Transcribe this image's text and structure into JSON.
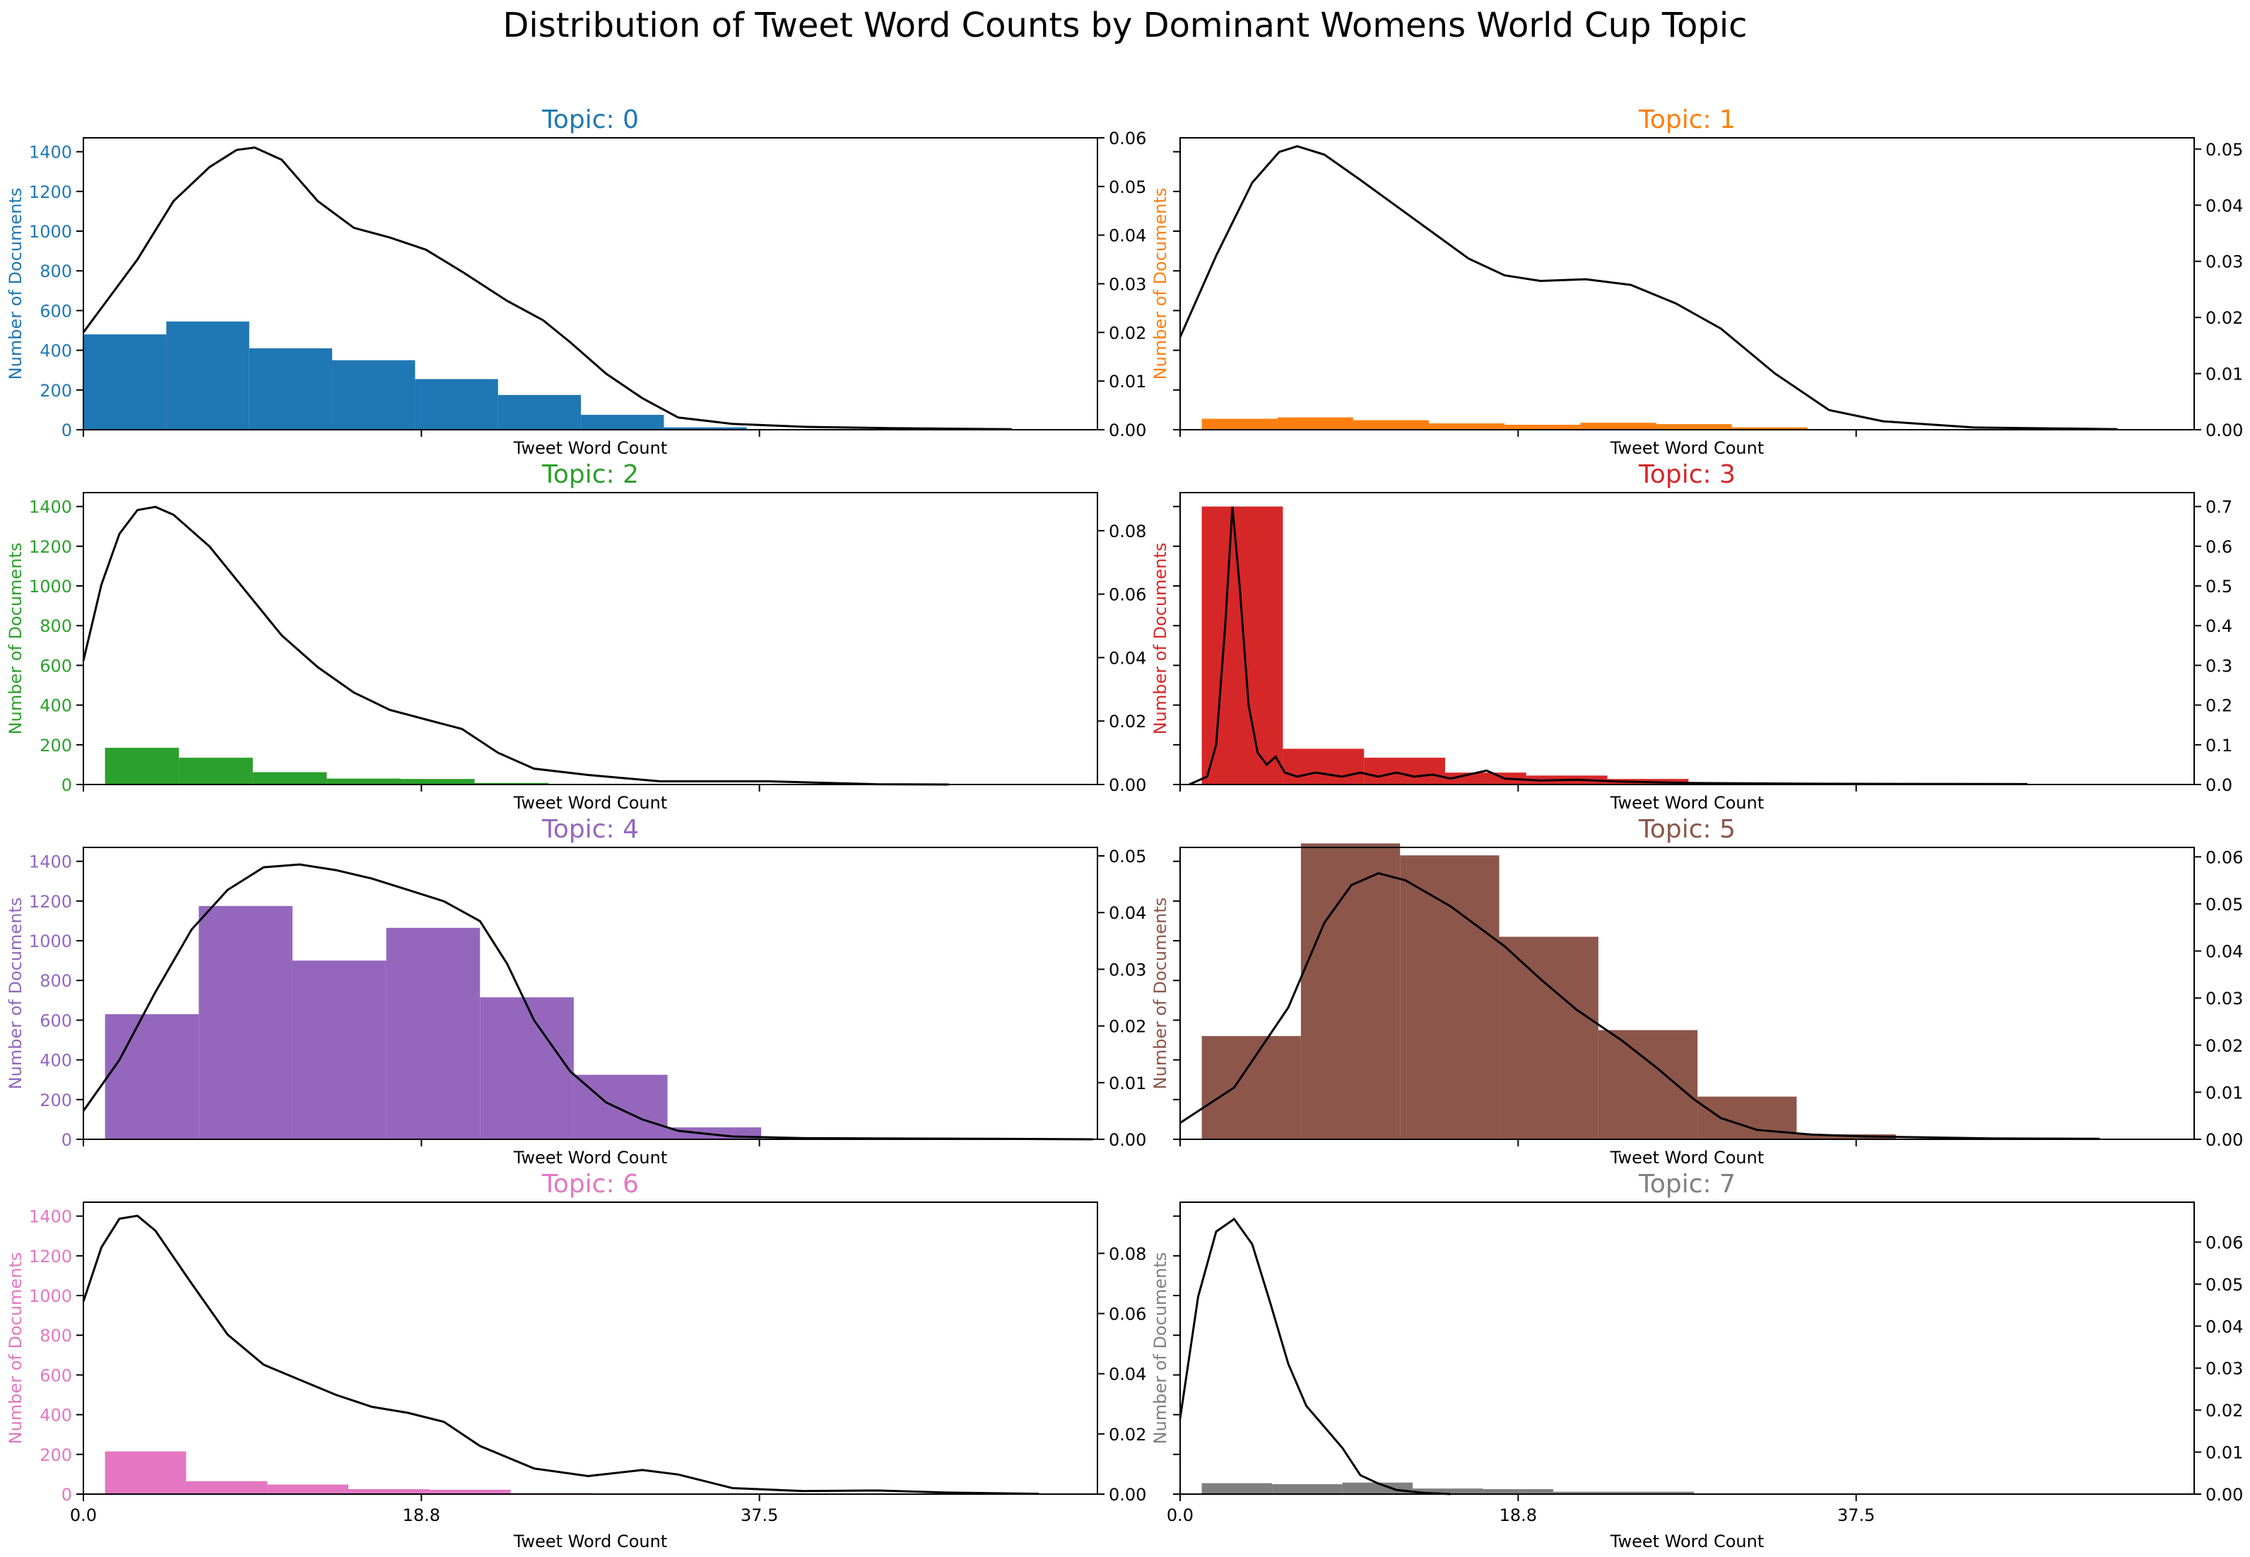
{
  "figure": {
    "title": "Distribution of Tweet Word Counts by Dominant  Womens World Cup Topic"
  },
  "shared": {
    "xlabel": "Tweet Word Count",
    "ylabel": "Number of Documents",
    "xlim": [
      0,
      56.25
    ],
    "xticks": [
      "0.0",
      "18.8",
      "37.5"
    ],
    "xtick_values": [
      0,
      18.75,
      37.5
    ],
    "left_ylim": [
      0,
      1470
    ],
    "left_yticks": [
      0,
      200,
      400,
      600,
      800,
      1000,
      1200,
      1400
    ]
  },
  "chart_data": [
    {
      "type": "bar",
      "title": "Topic: 0",
      "color": "#1f77b4",
      "bins": [
        [
          0.0,
          4.6,
          480
        ],
        [
          4.6,
          9.2,
          545
        ],
        [
          9.2,
          13.8,
          410
        ],
        [
          13.8,
          18.4,
          350
        ],
        [
          18.4,
          23.0,
          255
        ],
        [
          23.0,
          27.6,
          175
        ],
        [
          27.6,
          32.2,
          75
        ],
        [
          32.2,
          36.8,
          12
        ]
      ],
      "kde": {
        "ylim": [
          0,
          0.06
        ],
        "yticks": [
          "0.00",
          "0.01",
          "0.02",
          "0.03",
          "0.04",
          "0.05",
          "0.06"
        ],
        "ytick_values": [
          0,
          0.01,
          0.02,
          0.03,
          0.04,
          0.05,
          0.06
        ],
        "points": [
          [
            0,
            0.02
          ],
          [
            3,
            0.035
          ],
          [
            5,
            0.047
          ],
          [
            7,
            0.054
          ],
          [
            8.5,
            0.0575
          ],
          [
            9.5,
            0.058
          ],
          [
            11,
            0.0555
          ],
          [
            13,
            0.047
          ],
          [
            15,
            0.0415
          ],
          [
            17,
            0.0395
          ],
          [
            19,
            0.037
          ],
          [
            21,
            0.0325
          ],
          [
            23.5,
            0.0265
          ],
          [
            25.5,
            0.0225
          ],
          [
            27,
            0.018
          ],
          [
            29,
            0.0115
          ],
          [
            31,
            0.0065
          ],
          [
            33,
            0.0025
          ],
          [
            36,
            0.0012
          ],
          [
            40,
            0.0006
          ],
          [
            45,
            0.0003
          ],
          [
            51.5,
            0.0001
          ]
        ]
      }
    },
    {
      "type": "bar",
      "title": "Topic: 1",
      "color": "#ff7f0e",
      "bins": [
        [
          1.2,
          5.4,
          55
        ],
        [
          5.4,
          9.6,
          62
        ],
        [
          9.6,
          13.8,
          48
        ],
        [
          13.8,
          18.0,
          32
        ],
        [
          18.0,
          22.2,
          25
        ],
        [
          22.2,
          26.4,
          35
        ],
        [
          26.4,
          30.6,
          28
        ],
        [
          30.6,
          34.8,
          12
        ]
      ],
      "kde": {
        "ylim": [
          0,
          0.052
        ],
        "yticks": [
          "0.00",
          "0.01",
          "0.02",
          "0.03",
          "0.04",
          "0.05"
        ],
        "ytick_values": [
          0,
          0.01,
          0.02,
          0.03,
          0.04,
          0.05
        ],
        "points": [
          [
            0,
            0.0165
          ],
          [
            2,
            0.031
          ],
          [
            4,
            0.044
          ],
          [
            5.5,
            0.0495
          ],
          [
            6.5,
            0.0505
          ],
          [
            8,
            0.049
          ],
          [
            10,
            0.0445
          ],
          [
            13,
            0.0375
          ],
          [
            16,
            0.0305
          ],
          [
            18,
            0.0275
          ],
          [
            20,
            0.0265
          ],
          [
            22.5,
            0.0268
          ],
          [
            25,
            0.0258
          ],
          [
            27.5,
            0.0225
          ],
          [
            30,
            0.018
          ],
          [
            33,
            0.01
          ],
          [
            36,
            0.0035
          ],
          [
            39,
            0.0015
          ],
          [
            44,
            0.0004
          ],
          [
            52,
            0.0001
          ]
        ]
      }
    },
    {
      "type": "bar",
      "title": "Topic: 2",
      "color": "#2ca02c",
      "bins": [
        [
          1.2,
          5.3,
          185
        ],
        [
          5.3,
          9.4,
          135
        ],
        [
          9.4,
          13.5,
          62
        ],
        [
          13.5,
          17.6,
          30
        ],
        [
          17.6,
          21.7,
          28
        ],
        [
          21.7,
          25.8,
          8
        ],
        [
          25.8,
          29.9,
          3
        ]
      ],
      "kde": {
        "ylim": [
          0,
          0.092
        ],
        "yticks": [
          "0.00",
          "0.02",
          "0.04",
          "0.06",
          "0.08"
        ],
        "ytick_values": [
          0,
          0.02,
          0.04,
          0.06,
          0.08
        ],
        "points": [
          [
            0,
            0.039
          ],
          [
            1,
            0.063
          ],
          [
            2,
            0.079
          ],
          [
            3,
            0.0865
          ],
          [
            4,
            0.0875
          ],
          [
            5,
            0.085
          ],
          [
            7,
            0.075
          ],
          [
            9,
            0.061
          ],
          [
            11,
            0.047
          ],
          [
            13,
            0.037
          ],
          [
            15,
            0.029
          ],
          [
            17,
            0.0235
          ],
          [
            19,
            0.0205
          ],
          [
            21,
            0.0175
          ],
          [
            23,
            0.01
          ],
          [
            25,
            0.005
          ],
          [
            28,
            0.003
          ],
          [
            32,
            0.001
          ],
          [
            38,
            0.001
          ],
          [
            44,
            0.0001
          ],
          [
            48,
            0
          ]
        ]
      }
    },
    {
      "type": "bar",
      "title": "Topic: 3",
      "color": "#d62728",
      "bins": [
        [
          1.2,
          5.7,
          1400
        ],
        [
          5.7,
          10.2,
          180
        ],
        [
          10.2,
          14.7,
          135
        ],
        [
          14.7,
          19.2,
          60
        ],
        [
          19.2,
          23.7,
          45
        ],
        [
          23.7,
          28.2,
          28
        ],
        [
          28.2,
          32.7,
          5
        ]
      ],
      "kde": {
        "ylim": [
          0,
          0.735
        ],
        "yticks": [
          "0.0",
          "0.1",
          "0.2",
          "0.3",
          "0.4",
          "0.5",
          "0.6",
          "0.7"
        ],
        "ytick_values": [
          0,
          0.1,
          0.2,
          0.3,
          0.4,
          0.5,
          0.6,
          0.7
        ],
        "points": [
          [
            0.5,
            0
          ],
          [
            1.5,
            0.02
          ],
          [
            2,
            0.1
          ],
          [
            2.5,
            0.4
          ],
          [
            2.9,
            0.7
          ],
          [
            3.3,
            0.5
          ],
          [
            3.8,
            0.2
          ],
          [
            4.3,
            0.08
          ],
          [
            4.8,
            0.05
          ],
          [
            5.3,
            0.07
          ],
          [
            5.8,
            0.03
          ],
          [
            6.5,
            0.02
          ],
          [
            7.5,
            0.03
          ],
          [
            9,
            0.02
          ],
          [
            10,
            0.03
          ],
          [
            11,
            0.02
          ],
          [
            12,
            0.03
          ],
          [
            13,
            0.02
          ],
          [
            14,
            0.025
          ],
          [
            15,
            0.015
          ],
          [
            16,
            0.025
          ],
          [
            17,
            0.035
          ],
          [
            18,
            0.015
          ],
          [
            20,
            0.01
          ],
          [
            22,
            0.012
          ],
          [
            24,
            0.008
          ],
          [
            28,
            0.004
          ],
          [
            35,
            0.002
          ],
          [
            47,
            0.001
          ]
        ]
      }
    },
    {
      "type": "bar",
      "title": "Topic: 4",
      "color": "#9467bd",
      "bins": [
        [
          1.2,
          6.4,
          630
        ],
        [
          6.4,
          11.6,
          1175
        ],
        [
          11.6,
          16.8,
          900
        ],
        [
          16.8,
          22.0,
          1065
        ],
        [
          22.0,
          27.2,
          715
        ],
        [
          27.2,
          32.4,
          325
        ],
        [
          32.4,
          37.6,
          60
        ]
      ],
      "kde": {
        "ylim": [
          0,
          0.0515
        ],
        "yticks": [
          "0.00",
          "0.01",
          "0.02",
          "0.03",
          "0.04",
          "0.05"
        ],
        "ytick_values": [
          0,
          0.01,
          0.02,
          0.03,
          0.04,
          0.05
        ],
        "points": [
          [
            0,
            0.005
          ],
          [
            2,
            0.014
          ],
          [
            4,
            0.026
          ],
          [
            6,
            0.037
          ],
          [
            8,
            0.044
          ],
          [
            10,
            0.048
          ],
          [
            12,
            0.0485
          ],
          [
            14,
            0.0475
          ],
          [
            16,
            0.046
          ],
          [
            18,
            0.044
          ],
          [
            20,
            0.042
          ],
          [
            22,
            0.0385
          ],
          [
            23.5,
            0.031
          ],
          [
            25,
            0.021
          ],
          [
            27,
            0.012
          ],
          [
            29,
            0.0065
          ],
          [
            31,
            0.0035
          ],
          [
            33,
            0.0015
          ],
          [
            36,
            0.0005
          ],
          [
            40,
            0.0002
          ],
          [
            50,
            0.0001
          ],
          [
            56,
            0
          ]
        ]
      }
    },
    {
      "type": "bar",
      "title": "Topic: 5",
      "color": "#8c564b",
      "bins": [
        [
          1.2,
          6.7,
          520
        ],
        [
          6.7,
          12.2,
          1490
        ],
        [
          12.2,
          17.7,
          1430
        ],
        [
          17.7,
          23.2,
          1020
        ],
        [
          23.2,
          28.7,
          550
        ],
        [
          28.7,
          34.2,
          215
        ],
        [
          34.2,
          39.7,
          25
        ]
      ],
      "kde": {
        "ylim": [
          0,
          0.062
        ],
        "yticks": [
          "0.00",
          "0.01",
          "0.02",
          "0.03",
          "0.04",
          "0.05",
          "0.06"
        ],
        "ytick_values": [
          0,
          0.01,
          0.02,
          0.03,
          0.04,
          0.05,
          0.06
        ],
        "points": [
          [
            0,
            0.0035
          ],
          [
            3,
            0.011
          ],
          [
            6,
            0.028
          ],
          [
            8,
            0.046
          ],
          [
            9.5,
            0.054
          ],
          [
            11,
            0.0565
          ],
          [
            12.5,
            0.055
          ],
          [
            15,
            0.0495
          ],
          [
            18,
            0.041
          ],
          [
            20,
            0.034
          ],
          [
            22,
            0.0275
          ],
          [
            24.5,
            0.021
          ],
          [
            26.5,
            0.015
          ],
          [
            28.5,
            0.0085
          ],
          [
            30,
            0.0045
          ],
          [
            32,
            0.002
          ],
          [
            35,
            0.001
          ],
          [
            38,
            0.0006
          ],
          [
            45,
            0.0002
          ],
          [
            51,
            0.0001
          ]
        ]
      }
    },
    {
      "type": "bar",
      "title": "Topic: 6",
      "color": "#e377c2",
      "bins": [
        [
          1.2,
          5.7,
          215
        ],
        [
          5.7,
          10.2,
          65
        ],
        [
          10.2,
          14.7,
          48
        ],
        [
          14.7,
          19.2,
          25
        ],
        [
          19.2,
          23.7,
          22
        ],
        [
          23.7,
          28.2,
          5
        ],
        [
          28.2,
          32.7,
          3
        ],
        [
          32.7,
          37.2,
          2
        ]
      ],
      "kde": {
        "ylim": [
          0,
          0.097
        ],
        "yticks": [
          "0.00",
          "0.02",
          "0.04",
          "0.06",
          "0.08"
        ],
        "ytick_values": [
          0,
          0.02,
          0.04,
          0.06,
          0.08
        ],
        "points": [
          [
            0,
            0.064
          ],
          [
            1,
            0.082
          ],
          [
            2,
            0.0915
          ],
          [
            3,
            0.0925
          ],
          [
            4,
            0.0875
          ],
          [
            6,
            0.07
          ],
          [
            8,
            0.053
          ],
          [
            10,
            0.043
          ],
          [
            12,
            0.038
          ],
          [
            14,
            0.033
          ],
          [
            16,
            0.029
          ],
          [
            18,
            0.027
          ],
          [
            20,
            0.024
          ],
          [
            22,
            0.016
          ],
          [
            25,
            0.0085
          ],
          [
            28,
            0.006
          ],
          [
            31,
            0.008
          ],
          [
            33,
            0.0065
          ],
          [
            36,
            0.002
          ],
          [
            40,
            0.001
          ],
          [
            44,
            0.0012
          ],
          [
            48,
            0.0005
          ],
          [
            53,
            0.0001
          ]
        ]
      }
    },
    {
      "type": "bar",
      "title": "Topic: 7",
      "color": "#7f7f7f",
      "bins": [
        [
          1.2,
          5.1,
          55
        ],
        [
          5.1,
          9.0,
          50
        ],
        [
          9.0,
          12.9,
          58
        ],
        [
          12.9,
          16.8,
          28
        ],
        [
          16.8,
          20.7,
          25
        ],
        [
          20.7,
          24.6,
          12
        ],
        [
          24.6,
          28.5,
          12
        ],
        [
          28.5,
          32.4,
          3
        ],
        [
          32.4,
          36.3,
          3
        ]
      ],
      "kde": {
        "ylim": [
          0,
          0.0695
        ],
        "yticks": [
          "0.00",
          "0.01",
          "0.02",
          "0.03",
          "0.04",
          "0.05",
          "0.06"
        ],
        "ytick_values": [
          0,
          0.01,
          0.02,
          0.03,
          0.04,
          0.05,
          0.06
        ],
        "points": [
          [
            0,
            0.018
          ],
          [
            1,
            0.047
          ],
          [
            2,
            0.0625
          ],
          [
            3,
            0.0655
          ],
          [
            4,
            0.0595
          ],
          [
            5,
            0.0455
          ],
          [
            6,
            0.031
          ],
          [
            7,
            0.021
          ],
          [
            8,
            0.016
          ],
          [
            9,
            0.011
          ],
          [
            10,
            0.0045
          ],
          [
            11,
            0.0025
          ],
          [
            12,
            0.001
          ],
          [
            13.5,
            0.0003
          ],
          [
            15,
            0
          ]
        ]
      }
    }
  ]
}
